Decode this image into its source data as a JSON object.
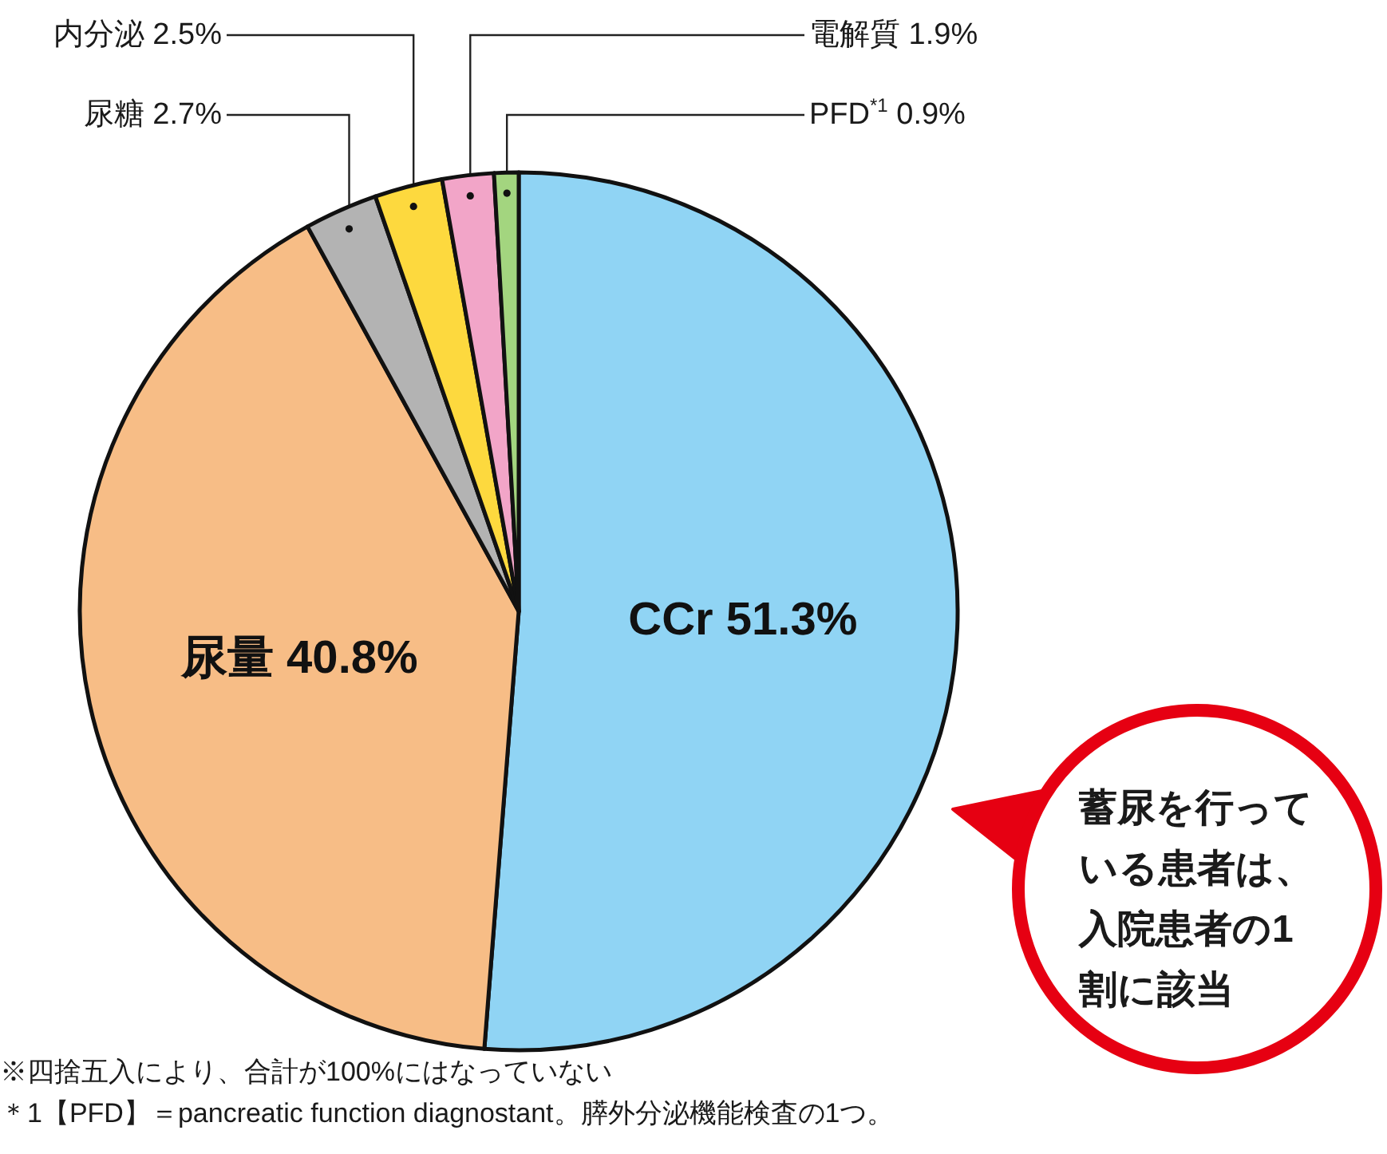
{
  "chart_data": {
    "type": "pie",
    "categories": [
      "CCr",
      "尿量",
      "尿糖",
      "内分泌",
      "電解質",
      "PFD$^{*1}$"
    ],
    "values": [
      51.3,
      40.8,
      2.7,
      2.5,
      1.9,
      0.9
    ],
    "colors": [
      "#90d4f4",
      "#f7bd86",
      "#b3b3b3",
      "#fdd93e",
      "#f2a5c8",
      "#a3d57f"
    ],
    "value_labels": [
      "51.3%",
      "40.8%",
      "2.7%",
      "2.5%",
      "1.9%",
      "0.9%"
    ],
    "annotations": [
      "蓄尿を行っている患者は、入院患者の1割に該当",
      "※四捨五入により、合計が100%にはなっていない",
      "＊1【PFD】＝pancreatic function diagnostant。膵外分泌機能検査の1つ。"
    ]
  }
}
